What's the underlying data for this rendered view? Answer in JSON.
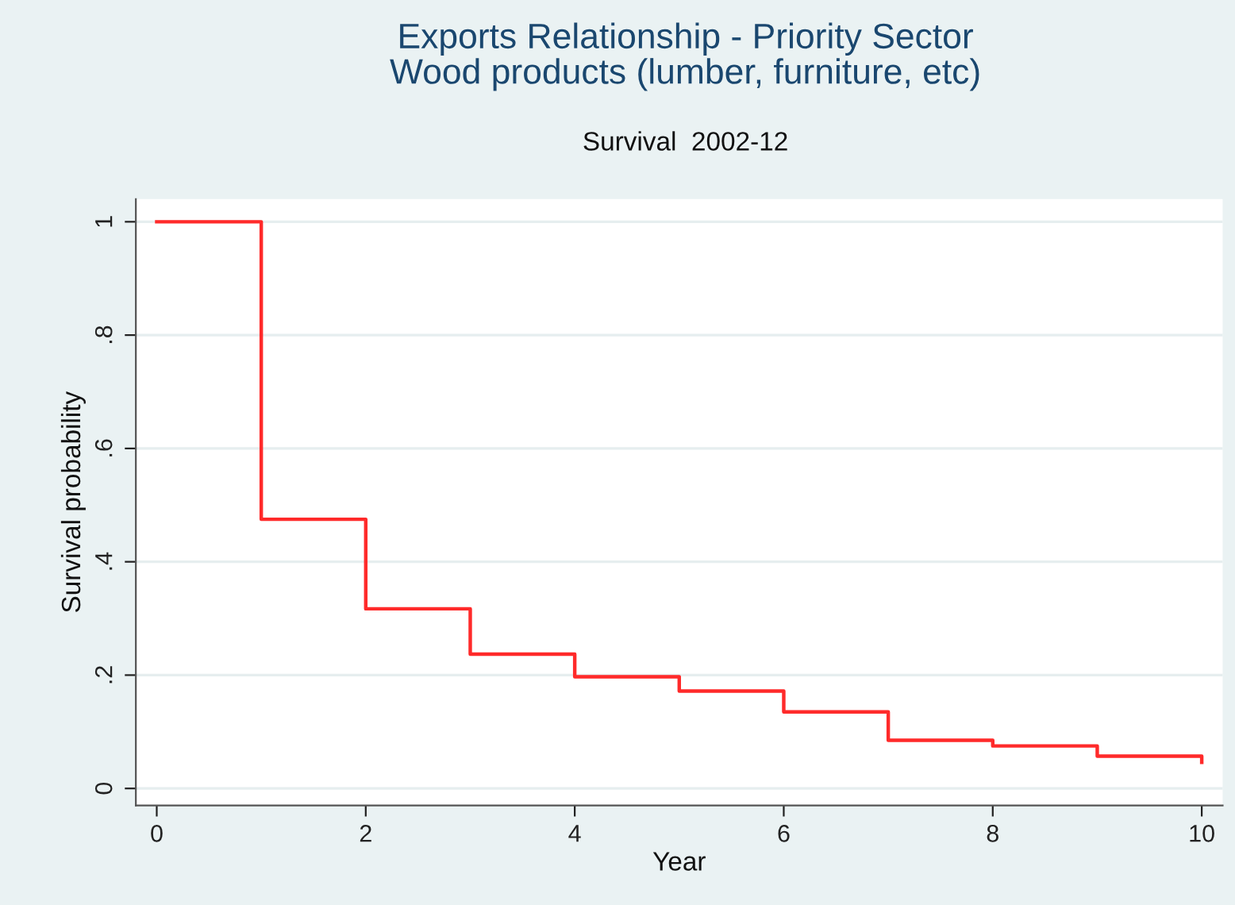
{
  "chart_data": {
    "type": "step",
    "title": "Exports Relationship - Priority Sector\nWood products (lumber, furniture, etc)",
    "subtitle": "Survival  2002-12",
    "xlabel": "Year",
    "ylabel": "Survival probability",
    "x": [
      0,
      1,
      2,
      3,
      4,
      5,
      6,
      7,
      8,
      9,
      10
    ],
    "series": [
      {
        "color": "#ff2a2a",
        "values": [
          1,
          0.475,
          0.317,
          0.237,
          0.197,
          0.172,
          0.135,
          0.085,
          0.075,
          0.057,
          0.046
        ]
      }
    ],
    "xlim": [
      -0.2,
      10.2
    ],
    "ylim": [
      -0.03,
      1.04
    ],
    "xticks": [
      0,
      2,
      4,
      6,
      8,
      10
    ],
    "yticks": [
      0,
      {
        "value": 0.2,
        "label": ".2"
      },
      {
        "value": 0.4,
        "label": ".4"
      },
      {
        "value": 0.6,
        "label": ".6"
      },
      {
        "value": 0.8,
        "label": ".8"
      },
      1
    ],
    "grid": "y",
    "line_style": "solid",
    "marker": "none"
  }
}
